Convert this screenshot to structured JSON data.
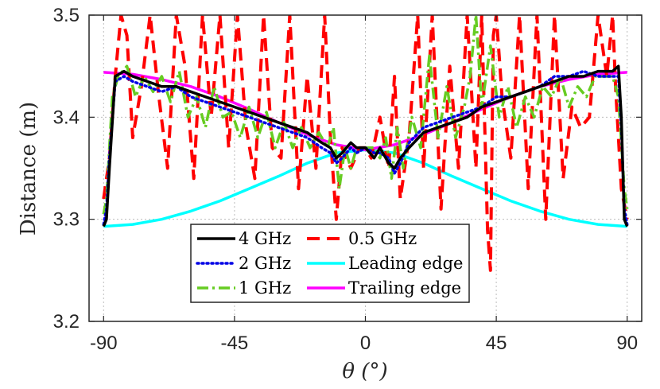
{
  "chart_data": {
    "type": "line",
    "title": "",
    "xlabel": "θ (°)",
    "ylabel": "Distance (m)",
    "xlim": [
      -95,
      95
    ],
    "ylim": [
      3.2,
      3.5
    ],
    "xticks": [
      -90,
      -45,
      0,
      45,
      90
    ],
    "xtick_labels": [
      "-90",
      "-45",
      "0",
      "45",
      "90"
    ],
    "yticks": [
      3.2,
      3.3,
      3.4,
      3.5
    ],
    "ytick_labels": [
      "3.2",
      "3.3",
      "3.4",
      "3.5"
    ],
    "grid": true,
    "legend_position": "bottom-center",
    "series": [
      {
        "name": "4 GHz",
        "color": "#000000",
        "style": "solid",
        "x": [
          -90,
          -89,
          -88,
          -86,
          -83,
          -80,
          -75,
          -70,
          -65,
          -60,
          -55,
          -50,
          -45,
          -40,
          -35,
          -30,
          -25,
          -20,
          -15,
          -12,
          -10,
          -8,
          -5,
          -3,
          0,
          3,
          5,
          8,
          10,
          12,
          15,
          20,
          25,
          30,
          35,
          40,
          45,
          50,
          55,
          60,
          65,
          70,
          75,
          80,
          85,
          87,
          88,
          89,
          90
        ],
        "y": [
          3.293,
          3.3,
          3.35,
          3.44,
          3.445,
          3.44,
          3.435,
          3.43,
          3.43,
          3.425,
          3.42,
          3.415,
          3.41,
          3.405,
          3.4,
          3.395,
          3.39,
          3.385,
          3.375,
          3.37,
          3.36,
          3.365,
          3.375,
          3.37,
          3.37,
          3.36,
          3.37,
          3.355,
          3.35,
          3.36,
          3.37,
          3.385,
          3.39,
          3.395,
          3.4,
          3.41,
          3.415,
          3.42,
          3.425,
          3.43,
          3.435,
          3.44,
          3.44,
          3.445,
          3.445,
          3.45,
          3.4,
          3.3,
          3.293
        ]
      },
      {
        "name": "2 GHz",
        "color": "#0000e6",
        "style": "dotted",
        "x": [
          -90,
          -89,
          -88,
          -86,
          -83,
          -80,
          -75,
          -70,
          -65,
          -60,
          -55,
          -50,
          -45,
          -40,
          -35,
          -30,
          -25,
          -20,
          -15,
          -12,
          -10,
          -8,
          -5,
          -3,
          0,
          3,
          5,
          8,
          10,
          12,
          15,
          20,
          25,
          30,
          35,
          40,
          45,
          50,
          55,
          60,
          65,
          70,
          75,
          80,
          85,
          87,
          88,
          89,
          90
        ],
        "y": [
          3.295,
          3.31,
          3.36,
          3.435,
          3.44,
          3.435,
          3.43,
          3.425,
          3.43,
          3.42,
          3.415,
          3.41,
          3.405,
          3.4,
          3.395,
          3.39,
          3.385,
          3.38,
          3.37,
          3.365,
          3.355,
          3.36,
          3.37,
          3.365,
          3.37,
          3.365,
          3.365,
          3.36,
          3.345,
          3.355,
          3.375,
          3.39,
          3.395,
          3.4,
          3.405,
          3.41,
          3.42,
          3.42,
          3.425,
          3.43,
          3.44,
          3.44,
          3.445,
          3.44,
          3.44,
          3.44,
          3.39,
          3.31,
          3.295
        ]
      },
      {
        "name": "1 GHz",
        "color": "#66cc22",
        "style": "dashdot",
        "x": [
          -90,
          -89,
          -87,
          -85,
          -82,
          -79,
          -76,
          -73,
          -70,
          -67,
          -64,
          -61,
          -58,
          -55,
          -52,
          -49,
          -46,
          -43,
          -40,
          -37,
          -34,
          -31,
          -28,
          -25,
          -22,
          -19,
          -16,
          -13,
          -11,
          -9,
          -7,
          -5,
          -3,
          0,
          3,
          5,
          7,
          9,
          11,
          13,
          16,
          19,
          22,
          25,
          28,
          31,
          34,
          36,
          38,
          40,
          43,
          46,
          49,
          52,
          55,
          58,
          61,
          64,
          67,
          70,
          73,
          76,
          79,
          82,
          85,
          87,
          89,
          90
        ],
        "y": [
          3.305,
          3.32,
          3.42,
          3.44,
          3.45,
          3.42,
          3.44,
          3.425,
          3.44,
          3.415,
          3.445,
          3.4,
          3.42,
          3.39,
          3.43,
          3.4,
          3.405,
          3.38,
          3.41,
          3.38,
          3.405,
          3.37,
          3.395,
          3.37,
          3.39,
          3.37,
          3.385,
          3.37,
          3.39,
          3.33,
          3.37,
          3.35,
          3.37,
          3.37,
          3.37,
          3.36,
          3.38,
          3.34,
          3.39,
          3.35,
          3.4,
          3.37,
          3.46,
          3.38,
          3.43,
          3.38,
          3.41,
          3.44,
          3.5,
          3.41,
          3.47,
          3.4,
          3.43,
          3.39,
          3.42,
          3.4,
          3.43,
          3.42,
          3.44,
          3.41,
          3.43,
          3.42,
          3.44,
          3.44,
          3.44,
          3.42,
          3.33,
          3.31
        ]
      },
      {
        "name": "0.5 GHz",
        "color": "#ff0000",
        "style": "dashed",
        "x": [
          -90,
          -88,
          -86,
          -84,
          -82,
          -80,
          -77,
          -74,
          -71,
          -68,
          -65,
          -62,
          -59,
          -56,
          -53,
          -50,
          -47,
          -44,
          -41,
          -38,
          -35,
          -32,
          -29,
          -26,
          -23,
          -20,
          -17,
          -14,
          -12,
          -10,
          -8,
          -5,
          -2,
          0,
          2,
          5,
          8,
          10,
          12,
          15,
          18,
          20,
          23,
          26,
          29,
          32,
          35,
          38,
          40,
          42,
          43,
          44,
          45,
          47,
          50,
          53,
          56,
          59,
          62,
          65,
          68,
          71,
          74,
          77,
          80,
          83,
          85,
          86,
          88,
          90
        ],
        "y": [
          3.32,
          3.36,
          3.44,
          3.5,
          3.48,
          3.38,
          3.43,
          3.5,
          3.42,
          3.35,
          3.5,
          3.45,
          3.34,
          3.5,
          3.4,
          3.5,
          3.37,
          3.5,
          3.39,
          3.34,
          3.5,
          3.37,
          3.36,
          3.5,
          3.33,
          3.44,
          3.35,
          3.5,
          3.38,
          3.3,
          3.37,
          3.35,
          3.37,
          3.37,
          3.36,
          3.4,
          3.35,
          3.44,
          3.32,
          3.38,
          3.5,
          3.35,
          3.5,
          3.31,
          3.45,
          3.35,
          3.5,
          3.35,
          3.5,
          3.29,
          3.25,
          3.48,
          3.5,
          3.42,
          3.36,
          3.5,
          3.33,
          3.5,
          3.3,
          3.5,
          3.34,
          3.41,
          3.39,
          3.4,
          3.5,
          3.44,
          3.5,
          3.43,
          3.33,
          3.3
        ]
      },
      {
        "name": "Leading edge",
        "color": "#00ffff",
        "style": "solid",
        "x": [
          -90,
          -80,
          -70,
          -60,
          -50,
          -40,
          -30,
          -20,
          -10,
          0,
          10,
          20,
          30,
          40,
          50,
          60,
          70,
          80,
          90
        ],
        "y": [
          3.293,
          3.295,
          3.3,
          3.308,
          3.318,
          3.33,
          3.342,
          3.355,
          3.365,
          3.368,
          3.365,
          3.355,
          3.342,
          3.33,
          3.318,
          3.308,
          3.3,
          3.295,
          3.293
        ]
      },
      {
        "name": "Trailing edge",
        "color": "#ff00ff",
        "style": "solid",
        "x": [
          -90,
          -80,
          -70,
          -60,
          -50,
          -40,
          -30,
          -20,
          -10,
          0,
          10,
          20,
          30,
          40,
          50,
          60,
          70,
          80,
          90
        ],
        "y": [
          3.444,
          3.442,
          3.437,
          3.43,
          3.42,
          3.408,
          3.395,
          3.383,
          3.373,
          3.368,
          3.373,
          3.383,
          3.395,
          3.408,
          3.42,
          3.43,
          3.437,
          3.442,
          3.444
        ]
      }
    ]
  }
}
